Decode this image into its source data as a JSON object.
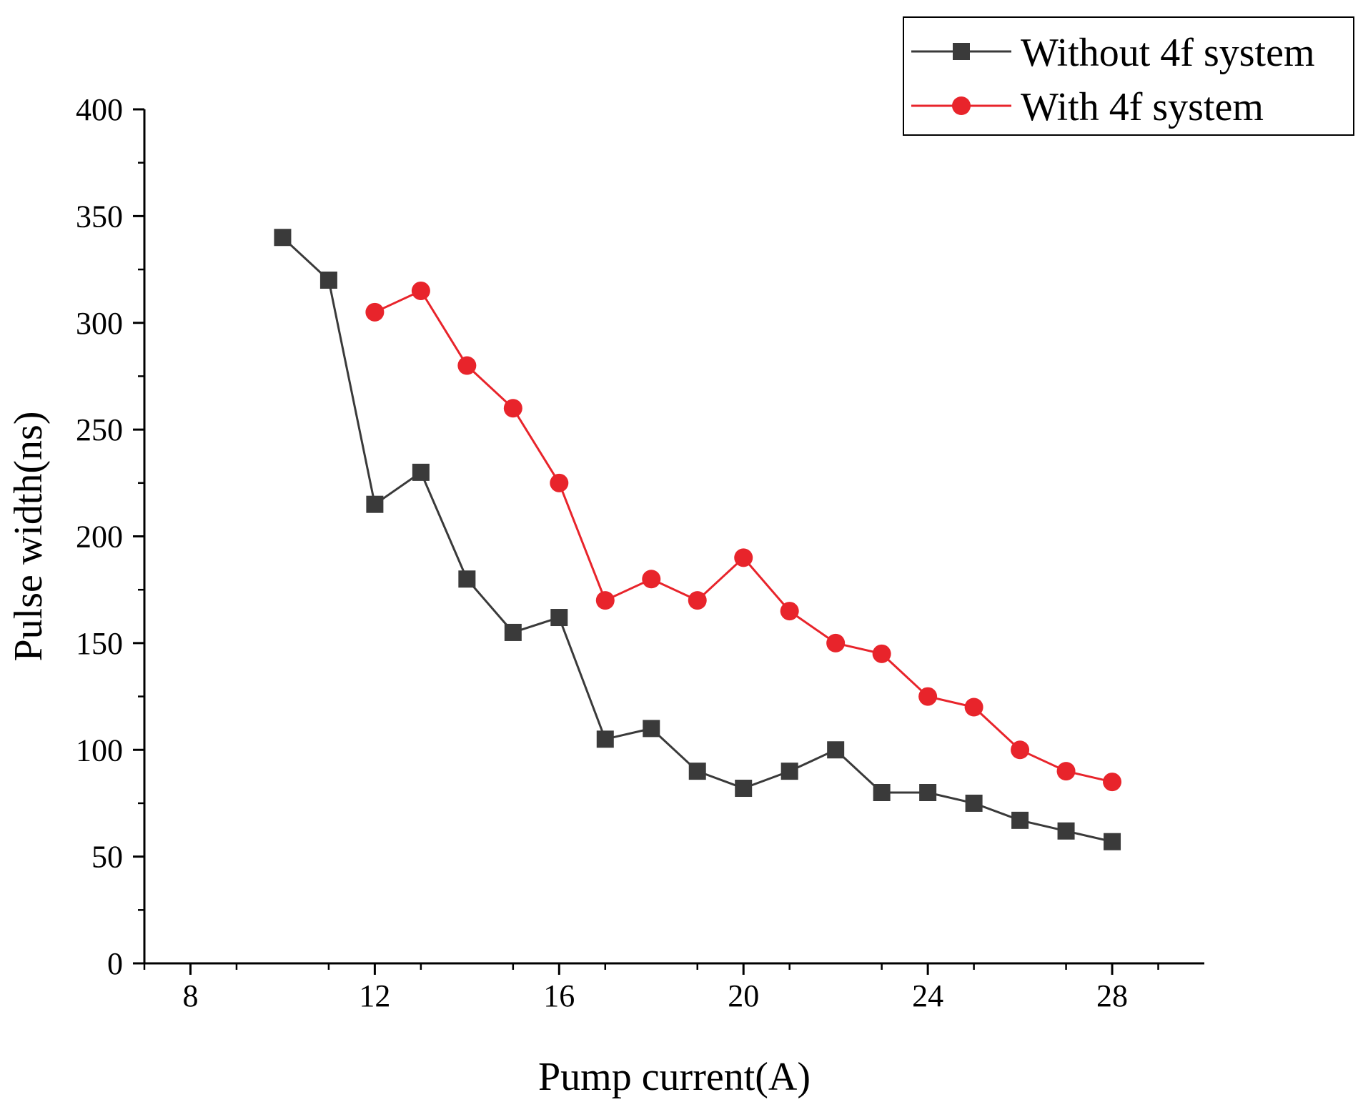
{
  "chart_data": {
    "type": "line",
    "title": "",
    "xlabel": "Pump current(A)",
    "ylabel": "Pulse width(ns)",
    "xlim": [
      7,
      30
    ],
    "ylim": [
      0,
      400
    ],
    "xticks": [
      8,
      12,
      16,
      20,
      24,
      28
    ],
    "xtick_labels": [
      "8",
      "12",
      "16",
      "20",
      "24",
      "28"
    ],
    "yticks": [
      0,
      50,
      100,
      150,
      200,
      250,
      300,
      350,
      400
    ],
    "ytick_labels": [
      "0",
      "50",
      "100",
      "150",
      "200",
      "250",
      "300",
      "350",
      "400"
    ],
    "grid": false,
    "legend_position": "top-right",
    "series": [
      {
        "name": "Without 4f system",
        "color": "#3a3a3a",
        "marker": "square",
        "x": [
          10,
          11,
          12,
          13,
          14,
          15,
          16,
          17,
          18,
          19,
          20,
          21,
          22,
          23,
          24,
          25,
          26,
          27,
          28
        ],
        "y": [
          340,
          320,
          215,
          230,
          180,
          155,
          162,
          105,
          110,
          90,
          82,
          90,
          100,
          80,
          80,
          75,
          67,
          62,
          57
        ]
      },
      {
        "name": "With 4f system",
        "color": "#e8242b",
        "marker": "circle",
        "x": [
          12,
          13,
          14,
          15,
          16,
          17,
          18,
          19,
          20,
          21,
          22,
          23,
          24,
          25,
          26,
          27,
          28
        ],
        "y": [
          305,
          315,
          280,
          260,
          225,
          170,
          180,
          170,
          190,
          165,
          150,
          145,
          125,
          120,
          100,
          90,
          85
        ]
      }
    ]
  }
}
